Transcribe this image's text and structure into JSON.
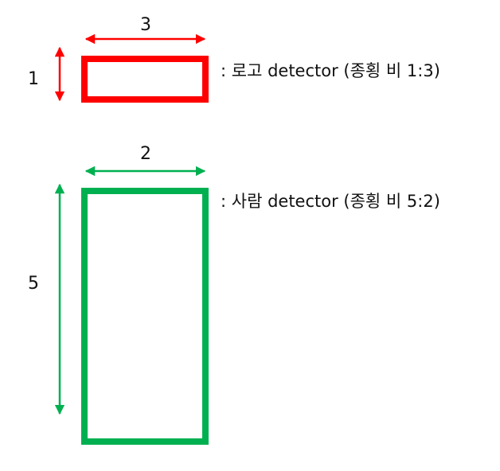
{
  "colors": {
    "logo": "#ff0000",
    "person": "#00b050",
    "text": "#111111"
  },
  "detectors": [
    {
      "id": "logo",
      "width_label": "3",
      "height_label": "1",
      "description": ": 로고 detector (종횡 비 1:3)",
      "aspect_ratio": {
        "height": 1,
        "width": 3
      }
    },
    {
      "id": "person",
      "width_label": "2",
      "height_label": "5",
      "description": ": 사람 detector (종횡 비 5:2)",
      "aspect_ratio": {
        "height": 5,
        "width": 2
      }
    }
  ]
}
